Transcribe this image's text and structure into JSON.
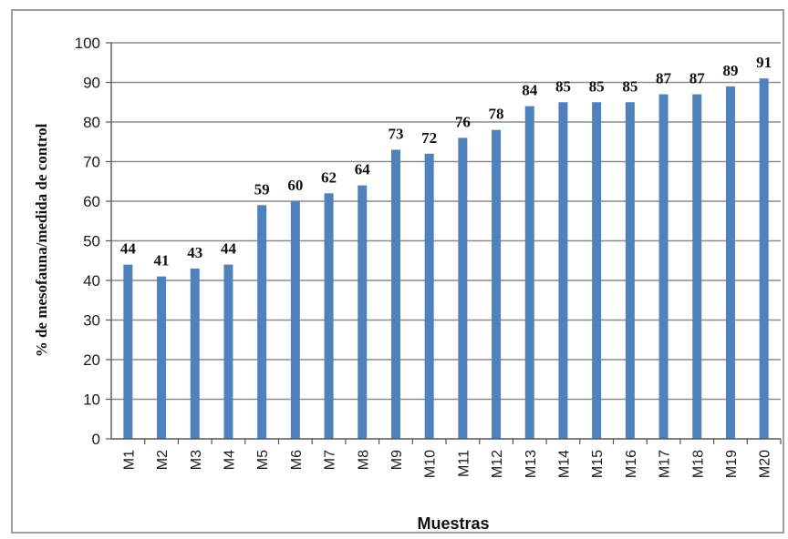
{
  "chart_data": {
    "type": "bar",
    "categories": [
      "M1",
      "M2",
      "M3",
      "M4",
      "M5",
      "M6",
      "M7",
      "M8",
      "M9",
      "M10",
      "M11",
      "M12",
      "M13",
      "M14",
      "M15",
      "M16",
      "M17",
      "M18",
      "M19",
      "M20"
    ],
    "values": [
      44,
      41,
      43,
      44,
      59,
      60,
      62,
      64,
      73,
      72,
      76,
      78,
      84,
      85,
      85,
      85,
      87,
      87,
      89,
      91
    ],
    "data_labels": [
      "44",
      "41",
      "43",
      "44",
      "59",
      "60",
      "62",
      "64",
      "73",
      "72",
      "76",
      "78",
      "84",
      "85",
      "85",
      "85",
      "87",
      "87",
      "89",
      "91"
    ],
    "xlabel": "Muestras",
    "ylabel": "% de mesofauna/medida de control",
    "ylim": [
      0,
      100
    ],
    "yticks": [
      0,
      10,
      20,
      30,
      40,
      50,
      60,
      70,
      80,
      90,
      100
    ],
    "grid": true,
    "legend": "none",
    "bar_color": "#4f81bd",
    "grid_color": "#8c8c8c"
  }
}
